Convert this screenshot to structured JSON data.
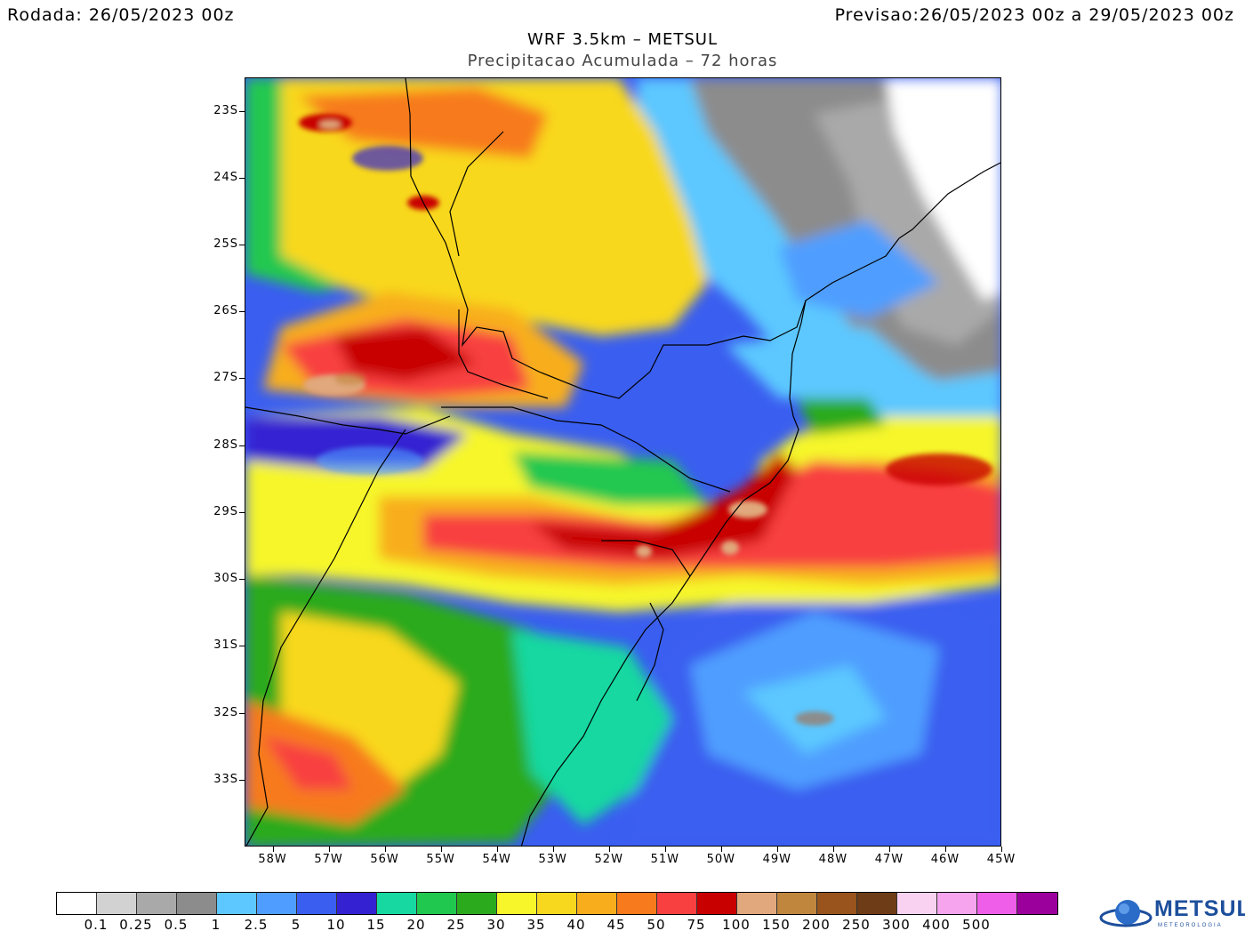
{
  "header": {
    "rodada_label": "Rodada:",
    "rodada_value": "26/05/2023 00z",
    "previsao_label": "Previsao:",
    "previsao_value": "26/05/2023 00z a 29/05/2023 00z"
  },
  "title": "WRF 3.5km – METSUL",
  "subtitle": "Precipitacao Acumulada – 72 horas",
  "map": {
    "lat_labels": [
      "23S",
      "24S",
      "25S",
      "26S",
      "27S",
      "28S",
      "29S",
      "30S",
      "31S",
      "32S",
      "33S"
    ],
    "lon_labels": [
      "58W",
      "57W",
      "56W",
      "55W",
      "54W",
      "53W",
      "52W",
      "51W",
      "50W",
      "49W",
      "48W",
      "47W",
      "46W",
      "45W"
    ],
    "lat_range": [
      -34.0,
      -22.5
    ],
    "lon_range": [
      -58.5,
      -45.0
    ]
  },
  "colorbar": {
    "colors": [
      "#ffffff",
      "#d2d2d2",
      "#a9a9a9",
      "#8c8c8c",
      "#5cc8ff",
      "#4f9eff",
      "#3a5ef0",
      "#3422d2",
      "#16d8a0",
      "#20c850",
      "#2caa1e",
      "#f6f62a",
      "#f8d81e",
      "#f8ae1c",
      "#f77a1c",
      "#f84040",
      "#c80000",
      "#e0a87c",
      "#c0863e",
      "#98541c",
      "#6e3c16",
      "#f8d2f0",
      "#f6a4ee",
      "#ee5ee8",
      "#9c009c"
    ],
    "labels": [
      "0.1",
      "0.25",
      "0.5",
      "1",
      "2.5",
      "5",
      "10",
      "15",
      "20",
      "25",
      "30",
      "35",
      "40",
      "45",
      "50",
      "75",
      "100",
      "150",
      "200",
      "250",
      "300",
      "400",
      "500"
    ]
  },
  "logo": {
    "text": "METSUL",
    "subtext": "METEOROLOGIA"
  }
}
